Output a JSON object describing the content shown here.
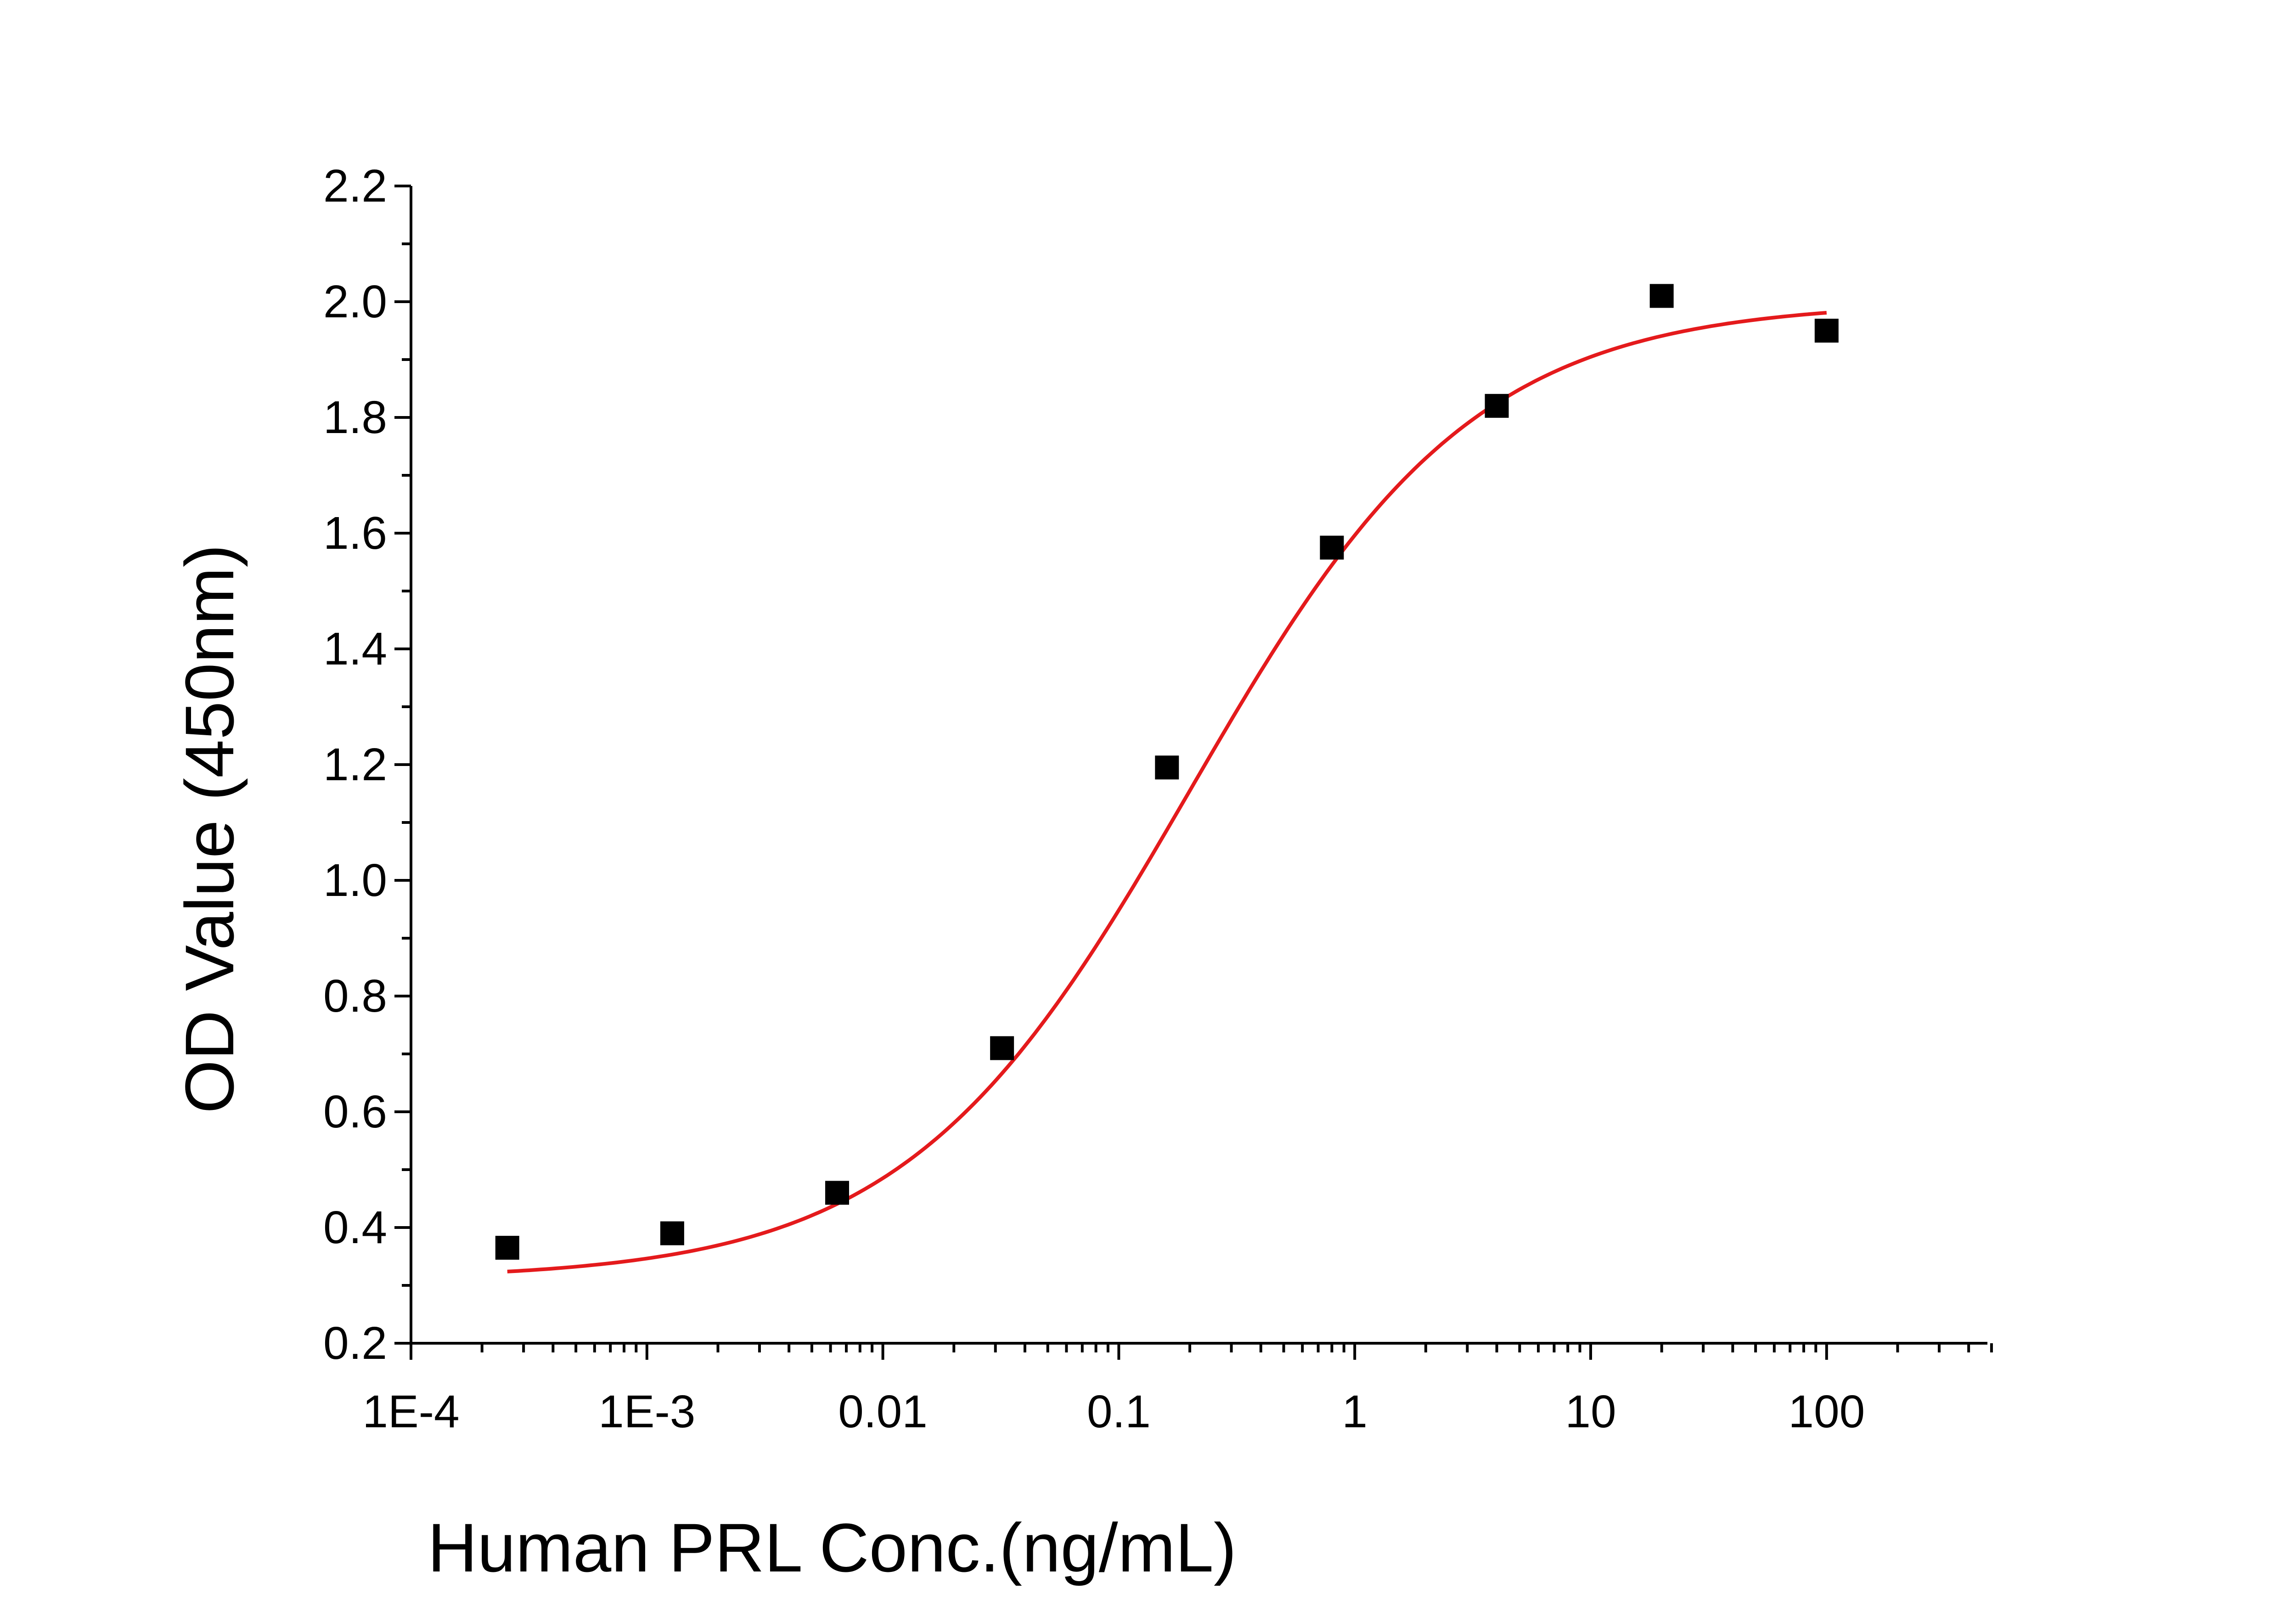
{
  "chart_data": {
    "type": "scatter",
    "title": "",
    "xlabel": "Human PRL Conc.(ng/mL)",
    "ylabel": "OD Value (450nm)",
    "x_scale": "log",
    "xlim": [
      0.0001,
      500
    ],
    "ylim": [
      0.2,
      2.2
    ],
    "x_tick_values": [
      0.0001,
      0.001,
      0.01,
      0.1,
      1,
      10,
      100
    ],
    "x_tick_labels": [
      "1E-4",
      "1E-3",
      "0.01",
      "0.1",
      "1",
      "10",
      "100"
    ],
    "y_tick_values": [
      0.2,
      0.4,
      0.6,
      0.8,
      1.0,
      1.2,
      1.4,
      1.6,
      1.8,
      2.0,
      2.2
    ],
    "y_tick_labels": [
      "0.2",
      "0.4",
      "0.6",
      "0.8",
      "1.0",
      "1.2",
      "1.4",
      "1.6",
      "1.8",
      "2.0",
      "2.2"
    ],
    "grid": false,
    "legend": "none",
    "series": [
      {
        "kind": "points",
        "marker": "square",
        "color": "#000000",
        "x": [
          0.000256,
          0.00128,
          0.0064,
          0.032,
          0.16,
          0.8,
          4,
          20,
          100
        ],
        "y": [
          0.365,
          0.39,
          0.46,
          0.71,
          1.195,
          1.575,
          1.82,
          2.01,
          1.95
        ]
      },
      {
        "kind": "fit-curve",
        "model": "4PL",
        "color": "#e41a1c",
        "x_range": [
          0.000256,
          100
        ],
        "params": {
          "bottom": 0.31,
          "top": 2.0,
          "ec50": 0.2,
          "hill": 0.72
        }
      }
    ]
  }
}
